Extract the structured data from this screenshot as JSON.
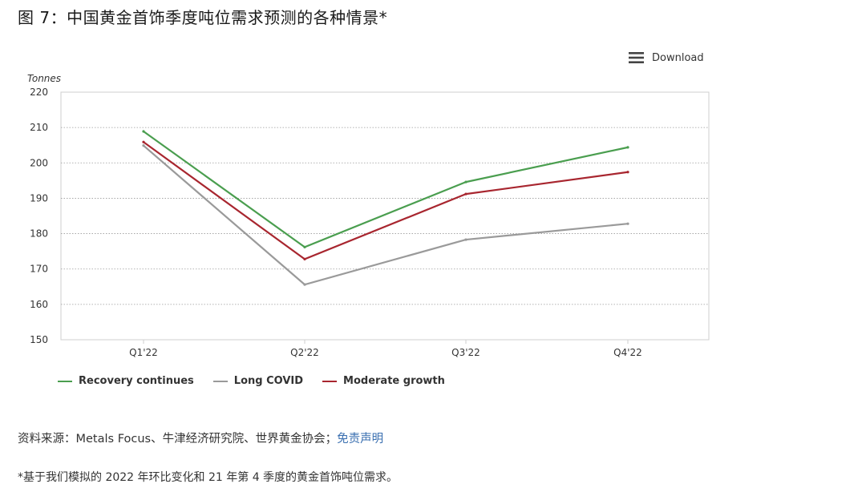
{
  "title": "图 7：中国黄金首饰季度吨位需求预测的各种情景*",
  "toolbar": {
    "download_label": "Download",
    "download_icon": "menu-icon"
  },
  "chart_data": {
    "type": "line",
    "categories": [
      "Q1'22",
      "Q2'22",
      "Q3'22",
      "Q4'22"
    ],
    "ylabel": "Tonnes",
    "ylim": [
      150,
      220
    ],
    "yticks": [
      150,
      160,
      170,
      180,
      190,
      200,
      210,
      220
    ],
    "grid": true,
    "legend_position": "bottom-left",
    "series": [
      {
        "name": "Recovery continues",
        "color": "#4a9e4f",
        "values": [
          208.9,
          176.2,
          194.6,
          204.4
        ]
      },
      {
        "name": "Long COVID",
        "color": "#9a9a9a",
        "values": [
          204.9,
          165.6,
          178.3,
          182.8
        ]
      },
      {
        "name": "Moderate growth",
        "color": "#a8262f",
        "values": [
          205.9,
          172.8,
          191.2,
          197.4
        ]
      }
    ]
  },
  "source": {
    "text": "资料来源：Metals Focus、牛津经济研究院、世界黄金协会；",
    "link_label": "免责声明"
  },
  "footnote": "*基于我们模拟的 2022 年环比变化和 21 年第 4 季度的黄金首饰吨位需求。"
}
